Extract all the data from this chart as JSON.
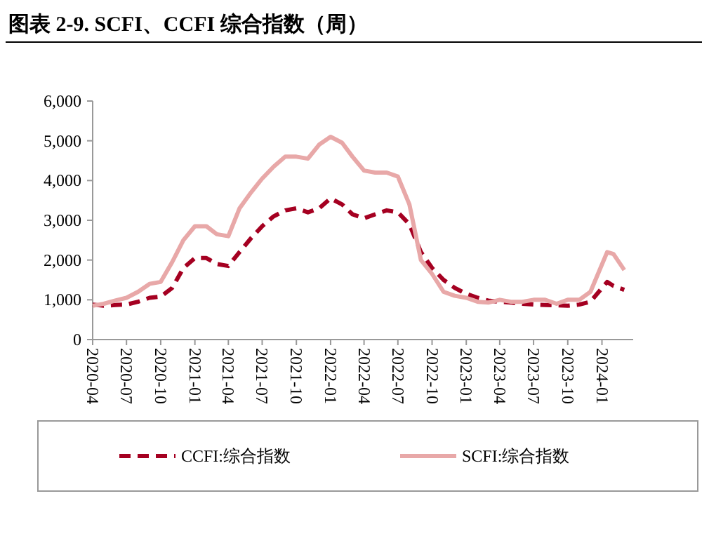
{
  "chart_data": {
    "type": "line",
    "title": "图表 2-9. SCFI、CCFI 综合指数（周）",
    "x": [
      "2020-04",
      "2020-05",
      "2020-06",
      "2020-07",
      "2020-08",
      "2020-09",
      "2020-10",
      "2020-11",
      "2020-12",
      "2021-01",
      "2021-02",
      "2021-03",
      "2021-04",
      "2021-05",
      "2021-06",
      "2021-07",
      "2021-08",
      "2021-09",
      "2021-10",
      "2021-11",
      "2021-12",
      "2022-01",
      "2022-02",
      "2022-03",
      "2022-04",
      "2022-05",
      "2022-06",
      "2022-07",
      "2022-08",
      "2022-09",
      "2022-10",
      "2022-11",
      "2022-12",
      "2023-01",
      "2023-02",
      "2023-03",
      "2023-04",
      "2023-05",
      "2023-06",
      "2023-07",
      "2023-08",
      "2023-09",
      "2023-10",
      "2023-11",
      "2023-12",
      "2024-01-15",
      "2024-02",
      "2024-03"
    ],
    "series": [
      {
        "name": "CCFI:综合指数",
        "color": "#a50021",
        "line_style": "dashed",
        "values": [
          880,
          850,
          870,
          880,
          950,
          1050,
          1080,
          1300,
          1800,
          2050,
          2050,
          1900,
          1850,
          2200,
          2550,
          2850,
          3100,
          3250,
          3300,
          3200,
          3300,
          3550,
          3400,
          3150,
          3050,
          3150,
          3250,
          3200,
          2900,
          2200,
          1800,
          1500,
          1300,
          1150,
          1050,
          980,
          950,
          930,
          900,
          880,
          870,
          860,
          850,
          880,
          950,
          1450,
          1350,
          1250
        ]
      },
      {
        "name": "SCFI:综合指数",
        "color": "#e8a8a8",
        "line_style": "solid",
        "values": [
          850,
          900,
          980,
          1050,
          1200,
          1400,
          1450,
          1950,
          2500,
          2850,
          2850,
          2650,
          2600,
          3300,
          3700,
          4050,
          4350,
          4600,
          4600,
          4550,
          4900,
          5100,
          4950,
          4600,
          4250,
          4200,
          4200,
          4100,
          3400,
          2000,
          1650,
          1200,
          1100,
          1050,
          950,
          930,
          1000,
          950,
          950,
          1000,
          1000,
          900,
          1000,
          1000,
          1200,
          2200,
          2150,
          1750
        ]
      }
    ],
    "xlim": [
      "2020-04",
      "2024-03-25"
    ],
    "xticks": [
      "2020-04",
      "2020-07",
      "2020-10",
      "2021-01",
      "2021-04",
      "2021-07",
      "2021-10",
      "2022-01",
      "2022-04",
      "2022-07",
      "2022-10",
      "2023-01",
      "2023-04",
      "2023-07",
      "2023-10",
      "2024-01"
    ],
    "ylim": [
      0,
      6000
    ],
    "yticks": [
      {
        "value": 0,
        "label": "0"
      },
      {
        "value": 1000,
        "label": "1,000"
      },
      {
        "value": 2000,
        "label": "2,000"
      },
      {
        "value": 3000,
        "label": "3,000"
      },
      {
        "value": 4000,
        "label": "4,000"
      },
      {
        "value": 5000,
        "label": "5,000"
      },
      {
        "value": 6000,
        "label": "6,000"
      }
    ],
    "legend": "bottom"
  }
}
